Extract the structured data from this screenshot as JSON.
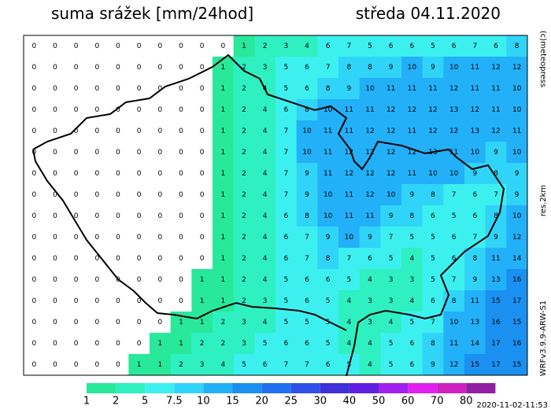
{
  "header": {
    "title": "suma srážek [mm/24hod]",
    "date": "středa 04.11.2020"
  },
  "credits": {
    "copyright": "(c)meteopress",
    "resolution": "res.2km",
    "model": "WRFv3.9.9-ARW-S1"
  },
  "colorbar": {
    "ticks": [
      1,
      2,
      5,
      7.5,
      10,
      15,
      20,
      25,
      30,
      40,
      50,
      60,
      70,
      80
    ],
    "colors": [
      "#28e89a",
      "#2ef0c0",
      "#3cf0f0",
      "#30d4f8",
      "#22b0f8",
      "#1a90f0",
      "#2070f0",
      "#3050e8",
      "#4030d8",
      "#6020e0",
      "#a020f0",
      "#e020f0",
      "#d020c0",
      "#9020a0"
    ]
  },
  "grid": {
    "rows": [
      [
        0,
        0,
        0,
        0,
        0,
        0,
        0,
        0,
        0,
        0,
        1,
        2,
        3,
        4,
        6,
        7,
        5,
        6,
        6,
        5,
        6,
        7,
        6,
        8
      ],
      [
        0,
        0,
        0,
        0,
        0,
        0,
        0,
        0,
        0,
        1,
        2,
        3,
        5,
        6,
        7,
        8,
        8,
        9,
        10,
        9,
        10,
        11,
        12,
        12
      ],
      [
        0,
        0,
        0,
        0,
        0,
        0,
        0,
        0,
        0,
        1,
        2,
        4,
        5,
        6,
        8,
        9,
        10,
        11,
        11,
        11,
        12,
        11,
        11,
        10
      ],
      [
        0,
        0,
        0,
        0,
        0,
        0,
        0,
        0,
        0,
        1,
        2,
        4,
        6,
        8,
        10,
        11,
        11,
        12,
        12,
        12,
        13,
        12,
        11,
        10
      ],
      [
        0,
        0,
        0,
        0,
        0,
        0,
        0,
        0,
        0,
        1,
        2,
        4,
        7,
        10,
        11,
        11,
        12,
        12,
        11,
        12,
        12,
        13,
        12,
        11
      ],
      [
        0,
        0,
        0,
        0,
        0,
        0,
        0,
        0,
        0,
        1,
        2,
        4,
        7,
        10,
        11,
        12,
        12,
        12,
        12,
        13,
        11,
        10,
        9,
        10
      ],
      [
        0,
        0,
        0,
        0,
        0,
        0,
        0,
        0,
        0,
        1,
        2,
        4,
        7,
        9,
        11,
        12,
        12,
        12,
        11,
        10,
        10,
        9,
        8,
        9
      ],
      [
        0,
        0,
        0,
        0,
        0,
        0,
        0,
        0,
        0,
        1,
        2,
        4,
        7,
        9,
        10,
        11,
        12,
        10,
        9,
        8,
        7,
        6,
        7,
        9
      ],
      [
        0,
        0,
        0,
        0,
        0,
        0,
        0,
        0,
        0,
        1,
        2,
        4,
        6,
        8,
        10,
        11,
        11,
        9,
        8,
        6,
        5,
        6,
        8,
        10
      ],
      [
        0,
        0,
        0,
        0,
        0,
        0,
        0,
        0,
        0,
        1,
        2,
        4,
        6,
        7,
        9,
        10,
        9,
        7,
        5,
        5,
        6,
        7,
        9,
        12
      ],
      [
        0,
        0,
        0,
        0,
        0,
        0,
        0,
        0,
        0,
        1,
        2,
        4,
        6,
        7,
        8,
        7,
        6,
        5,
        4,
        5,
        6,
        8,
        11,
        14
      ],
      [
        0,
        0,
        0,
        0,
        0,
        0,
        0,
        0,
        1,
        1,
        2,
        4,
        5,
        6,
        6,
        5,
        4,
        3,
        3,
        5,
        7,
        9,
        13,
        16
      ],
      [
        0,
        0,
        0,
        0,
        0,
        0,
        0,
        0,
        1,
        1,
        2,
        3,
        5,
        6,
        5,
        4,
        3,
        3,
        4,
        6,
        8,
        11,
        15,
        17
      ],
      [
        0,
        0,
        0,
        0,
        0,
        0,
        0,
        1,
        1,
        2,
        3,
        4,
        5,
        5,
        5,
        4,
        3,
        4,
        5,
        7,
        10,
        13,
        16,
        15
      ],
      [
        0,
        0,
        0,
        0,
        0,
        0,
        1,
        1,
        2,
        2,
        3,
        5,
        6,
        6,
        5,
        4,
        4,
        5,
        6,
        8,
        11,
        14,
        17,
        16
      ],
      [
        0,
        0,
        0,
        0,
        0,
        1,
        1,
        2,
        3,
        4,
        5,
        6,
        7,
        7,
        6,
        5,
        4,
        5,
        6,
        9,
        12,
        15,
        17,
        15
      ]
    ]
  },
  "timestamp": "2020-11-02-11:53"
}
